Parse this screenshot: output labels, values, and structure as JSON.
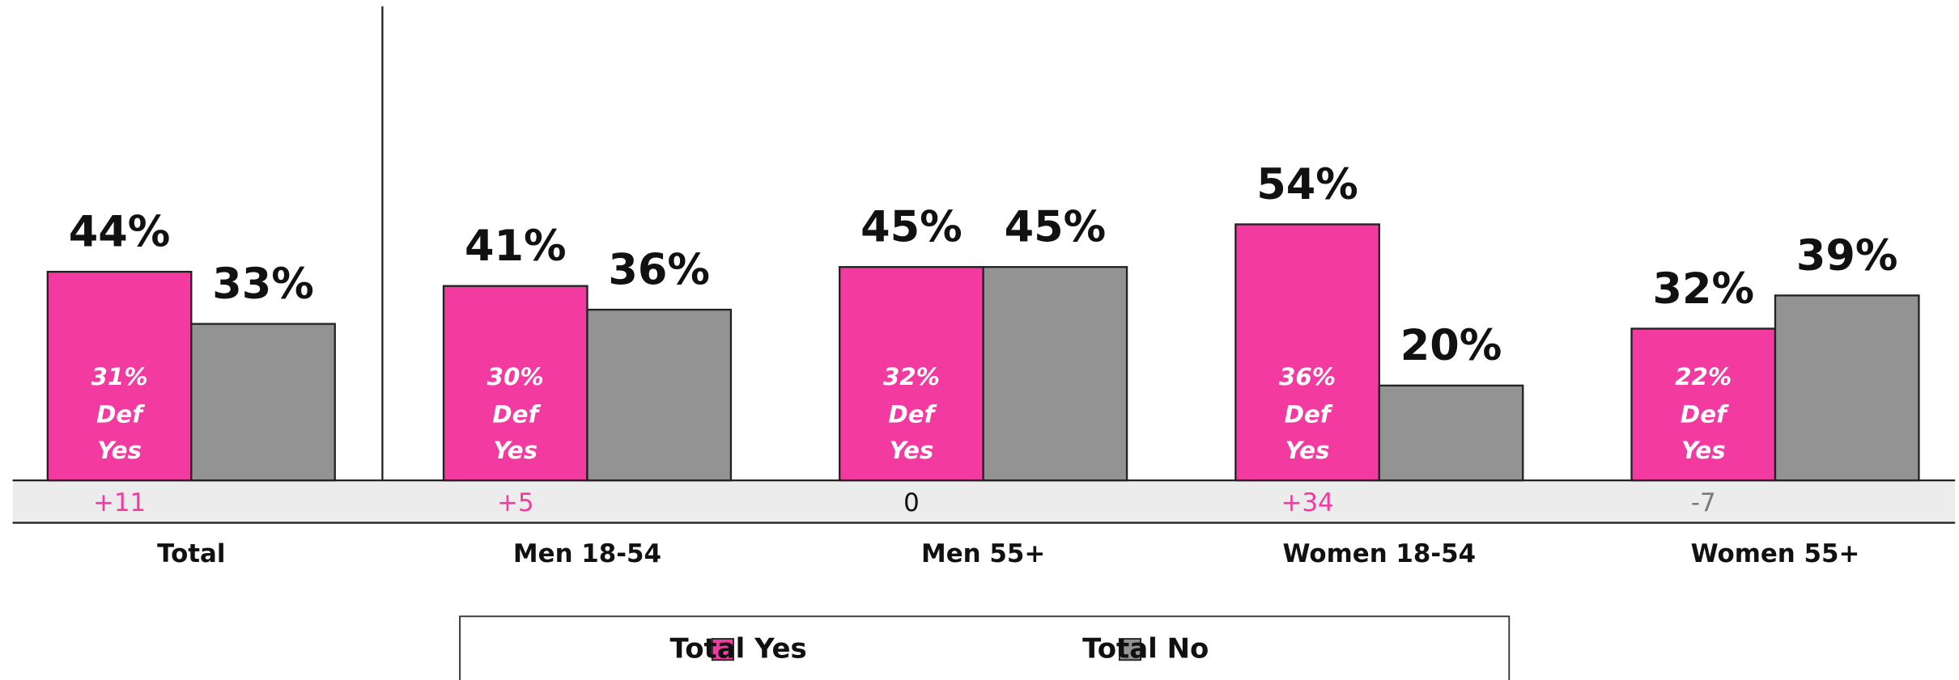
{
  "chart_data": {
    "type": "bar",
    "categories": [
      "Total",
      "Men 18-54",
      "Men 55+",
      "Women 18-54",
      "Women 55+"
    ],
    "series": [
      {
        "name": "Total Yes",
        "color": "#f23aa0",
        "values": [
          44,
          41,
          45,
          54,
          32
        ],
        "value_labels": [
          "44%",
          "41%",
          "45%",
          "54%",
          "32%"
        ]
      },
      {
        "name": "Total No",
        "color": "#939393",
        "values": [
          33,
          36,
          45,
          20,
          39
        ],
        "value_labels": [
          "33%",
          "36%",
          "45%",
          "20%",
          "39%"
        ]
      }
    ],
    "def_yes": {
      "values": [
        31,
        30,
        32,
        36,
        22
      ],
      "value_labels": [
        "31%",
        "30%",
        "32%",
        "36%",
        "22%"
      ],
      "label_lines": [
        "Def",
        "Yes"
      ]
    },
    "differences": {
      "values": [
        11,
        5,
        0,
        34,
        -7
      ],
      "value_labels": [
        "+11",
        "+5",
        "0",
        "+34",
        "-7"
      ]
    },
    "ylim": [
      0,
      100
    ],
    "legend": "bottom"
  }
}
